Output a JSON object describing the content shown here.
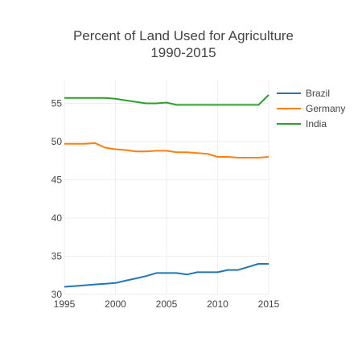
{
  "chart_data": {
    "type": "line",
    "title": [
      "Percent of Land Used for Agriculture",
      "1990-2015"
    ],
    "xlabel": "",
    "ylabel": "",
    "x": [
      1995,
      1996,
      1997,
      1998,
      1999,
      2000,
      2001,
      2002,
      2003,
      2004,
      2005,
      2006,
      2007,
      2008,
      2009,
      2010,
      2011,
      2012,
      2013,
      2014,
      2015
    ],
    "xlim": [
      1995,
      2015
    ],
    "ylim": [
      30,
      58
    ],
    "xticks": [
      "1995",
      "2000",
      "2005",
      "2010",
      "2015"
    ],
    "yticks": [
      "30",
      "35",
      "40",
      "45",
      "50",
      "55"
    ],
    "grid": true,
    "legend_position": "top-right",
    "series": [
      {
        "name": "Brazil",
        "color": "#1f77b4",
        "values": [
          31.0,
          31.1,
          31.2,
          31.3,
          31.4,
          31.5,
          31.8,
          32.1,
          32.4,
          32.8,
          32.8,
          32.8,
          32.6,
          32.9,
          32.9,
          32.9,
          33.2,
          33.2,
          33.6,
          34.0,
          34.0
        ]
      },
      {
        "name": "Germany",
        "color": "#ff7f0e",
        "values": [
          49.7,
          49.7,
          49.7,
          49.8,
          49.2,
          49.0,
          48.9,
          48.7,
          48.7,
          48.8,
          48.8,
          48.6,
          48.6,
          48.5,
          48.4,
          48.0,
          48.0,
          47.9,
          47.9,
          47.9,
          48.0
        ]
      },
      {
        "name": "India",
        "color": "#2ca02c",
        "values": [
          55.7,
          55.7,
          55.7,
          55.7,
          55.7,
          55.6,
          55.4,
          55.2,
          55.0,
          55.0,
          55.1,
          54.8,
          54.8,
          54.8,
          54.8,
          54.8,
          54.8,
          54.8,
          54.8,
          54.8,
          56.1
        ]
      }
    ]
  }
}
